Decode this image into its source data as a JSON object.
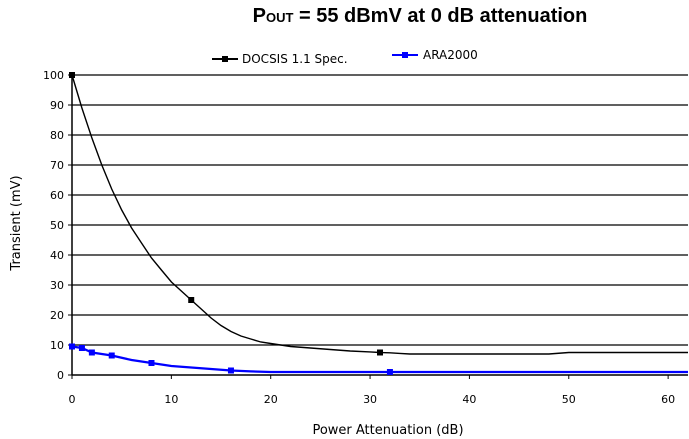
{
  "chart_data": {
    "type": "line",
    "title_prefix": "P",
    "title_subscript": "OUT",
    "title_suffix": " = 55 dBmV at 0 dB attenuation",
    "xlabel": "Power Attenuation (dB)",
    "ylabel": "Transient (mV)",
    "xlim": [
      0,
      62
    ],
    "ylim": [
      0,
      100
    ],
    "xticks": [
      0,
      10,
      20,
      30,
      40,
      50,
      60
    ],
    "yticks": [
      0,
      10,
      20,
      30,
      40,
      50,
      60,
      70,
      80,
      90,
      100
    ],
    "grid": "horizontal",
    "legend_position": "top-center",
    "series": [
      {
        "name": "DOCSIS 1.1 Spec.",
        "color": "#000000",
        "marker": "square",
        "x": [
          0,
          1,
          2,
          3,
          4,
          5,
          6,
          7,
          8,
          9,
          10,
          11,
          12,
          13,
          14,
          15,
          16,
          17,
          18,
          19,
          20,
          22,
          24,
          26,
          28,
          30,
          31,
          32,
          33,
          34,
          36,
          38,
          40,
          42,
          44,
          46,
          48,
          50,
          52,
          54,
          56,
          58,
          60,
          62
        ],
        "y": [
          100,
          89,
          79,
          70,
          62,
          55,
          49,
          44,
          39,
          35,
          31,
          28,
          25,
          22,
          19,
          16.5,
          14.5,
          13,
          12,
          11,
          10.5,
          9.5,
          9,
          8.5,
          8,
          7.7,
          7.5,
          7.4,
          7.2,
          7,
          7,
          7,
          7,
          7,
          7,
          7,
          7,
          7.5,
          7.5,
          7.5,
          7.5,
          7.5,
          7.5,
          7.5
        ],
        "markers_x": [
          0,
          12,
          31
        ]
      },
      {
        "name": "ARA2000",
        "color": "#0000ff",
        "marker": "square",
        "x": [
          0,
          1,
          2,
          3,
          4,
          6,
          8,
          10,
          12,
          14,
          16,
          18,
          20,
          24,
          28,
          32,
          36,
          40,
          50,
          62
        ],
        "y": [
          9.5,
          9,
          7.5,
          7,
          6.5,
          5,
          4,
          3,
          2.5,
          2,
          1.5,
          1.2,
          1,
          1,
          1,
          1,
          1,
          1,
          1,
          1
        ],
        "markers_x": [
          0,
          1,
          2,
          4,
          8,
          16,
          32
        ]
      }
    ]
  }
}
